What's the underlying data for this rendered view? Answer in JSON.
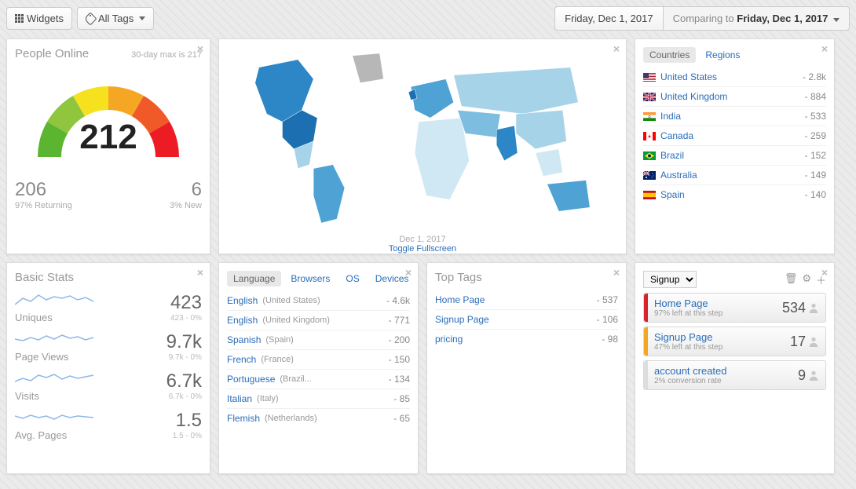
{
  "toolbar": {
    "widgets_label": "Widgets",
    "tags_label": "All Tags",
    "date_main": "Friday, Dec 1, 2017",
    "date_compare_prefix": "Comparing to ",
    "date_compare": "Friday, Dec 1, 2017"
  },
  "peopleOnline": {
    "title": "People Online",
    "max_label": "30-day max is 217",
    "value": "212",
    "returning_n": "206",
    "returning_l": "97% Returning",
    "new_n": "6",
    "new_l": "3% New",
    "gauge_colors": [
      "#5cb531",
      "#8fc63d",
      "#f6e11e",
      "#f5a623",
      "#f05a28",
      "#ed1c24"
    ]
  },
  "map": {
    "date": "Dec 1, 2017",
    "link": "Toggle Fullscreen",
    "land_base": "#b7b7b7",
    "shades": [
      "#cfe8f4",
      "#a7d3e8",
      "#7dbde0",
      "#4ea2d4",
      "#2d86c5",
      "#1c6fb0"
    ]
  },
  "countries": {
    "tabs": [
      "Countries",
      "Regions"
    ],
    "active_tab": 0,
    "items": [
      {
        "name": "United States",
        "val": "- 2.8k",
        "flag": "us"
      },
      {
        "name": "United Kingdom",
        "val": "- 884",
        "flag": "gb"
      },
      {
        "name": "India",
        "val": "- 533",
        "flag": "in"
      },
      {
        "name": "Canada",
        "val": "- 259",
        "flag": "ca"
      },
      {
        "name": "Brazil",
        "val": "- 152",
        "flag": "br"
      },
      {
        "name": "Australia",
        "val": "- 149",
        "flag": "au"
      },
      {
        "name": "Spain",
        "val": "- 140",
        "flag": "es"
      }
    ]
  },
  "basicStats": {
    "title": "Basic Stats",
    "rows": [
      {
        "label": "Uniques",
        "val": "423",
        "sub": "423 - 0%"
      },
      {
        "label": "Page Views",
        "val": "9.7k",
        "sub": "9.7k - 0%"
      },
      {
        "label": "Visits",
        "val": "6.7k",
        "sub": "6.7k - 0%"
      },
      {
        "label": "Avg. Pages",
        "val": "1.5",
        "sub": "1.5 - 0%"
      }
    ]
  },
  "language": {
    "tabs": [
      "Language",
      "Browsers",
      "OS",
      "Devices"
    ],
    "active_tab": 0,
    "items": [
      {
        "name": "English",
        "sub": "(United States)",
        "val": "- 4.6k"
      },
      {
        "name": "English",
        "sub": "(United Kingdom)",
        "val": "- 771"
      },
      {
        "name": "Spanish",
        "sub": "(Spain)",
        "val": "- 200"
      },
      {
        "name": "French",
        "sub": "(France)",
        "val": "- 150"
      },
      {
        "name": "Portuguese",
        "sub": "(Brazil...",
        "val": "- 134"
      },
      {
        "name": "Italian",
        "sub": "(Italy)",
        "val": "- 85"
      },
      {
        "name": "Flemish",
        "sub": "(Netherlands)",
        "val": "- 65"
      }
    ]
  },
  "topTags": {
    "title": "Top Tags",
    "items": [
      {
        "name": "Home Page",
        "val": "- 537"
      },
      {
        "name": "Signup Page",
        "val": "- 106"
      },
      {
        "name": "pricing",
        "val": "- 98"
      }
    ]
  },
  "funnel": {
    "select": "Signup",
    "steps": [
      {
        "name": "Home Page",
        "sub": "97% left at this step",
        "val": "534",
        "color": "#d9232e"
      },
      {
        "name": "Signup Page",
        "sub": "47% left at this step",
        "val": "17",
        "color": "#f5a623"
      },
      {
        "name": "account created",
        "sub": "2% conversion rate",
        "val": "9",
        "color": "#dddddd"
      }
    ]
  }
}
